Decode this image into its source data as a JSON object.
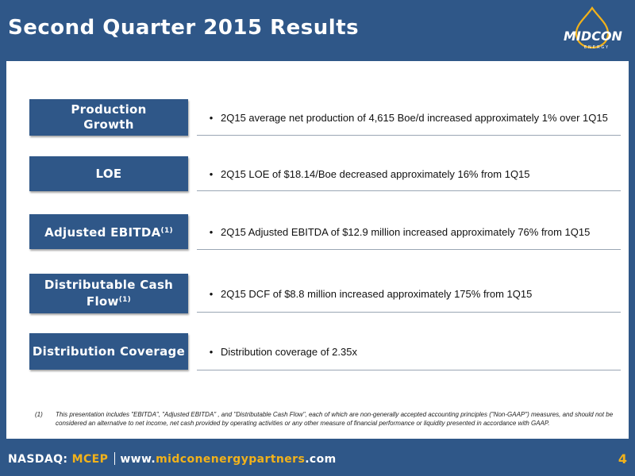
{
  "header": {
    "title": "Second Quarter 2015 Results"
  },
  "logo": {
    "brand_main": "MIDCON",
    "brand_sub": "ENERGY"
  },
  "rows": [
    {
      "label": "Production Growth",
      "label_sup": "",
      "text": "2Q15 average net production of 4,615 Boe/d increased approximately 1% over 1Q15"
    },
    {
      "label": "LOE",
      "label_sup": "",
      "text": "2Q15 LOE of $18.14/Boe decreased approximately 16% from 1Q15"
    },
    {
      "label": "Adjusted EBITDA",
      "label_sup": "(1)",
      "text": "2Q15 Adjusted EBITDA of $12.9 million increased approximately 76% from 1Q15"
    },
    {
      "label": "Distributable Cash Flow",
      "label_sup": "(1)",
      "text": "2Q15 DCF of $8.8 million increased approximately 175% from 1Q15"
    },
    {
      "label": "Distribution Coverage",
      "label_sup": "",
      "text": "Distribution coverage of 2.35x"
    }
  ],
  "bullet_glyph": "•",
  "footnote": {
    "number": "(1)",
    "text": "This presentation includes \"EBITDA\", \"Adjusted EBITDA\" , and \"Distributable Cash Flow\", each of which are non-generally accepted accounting principles (\"Non-GAAP\") measures, and should not be considered an alternative to net income, net cash provided by operating activities or any other measure of financial performance or liquidity presented in accordance with GAAP."
  },
  "footer": {
    "exchange": "NASDAQ: ",
    "ticker": "MCEP",
    "url_prefix": "www.",
    "url_domain": "midconenergypartners",
    "url_suffix": ".com",
    "page_number": "4"
  },
  "colors": {
    "navy": "#2f5788",
    "gold": "#f2b21a",
    "white": "#ffffff"
  }
}
